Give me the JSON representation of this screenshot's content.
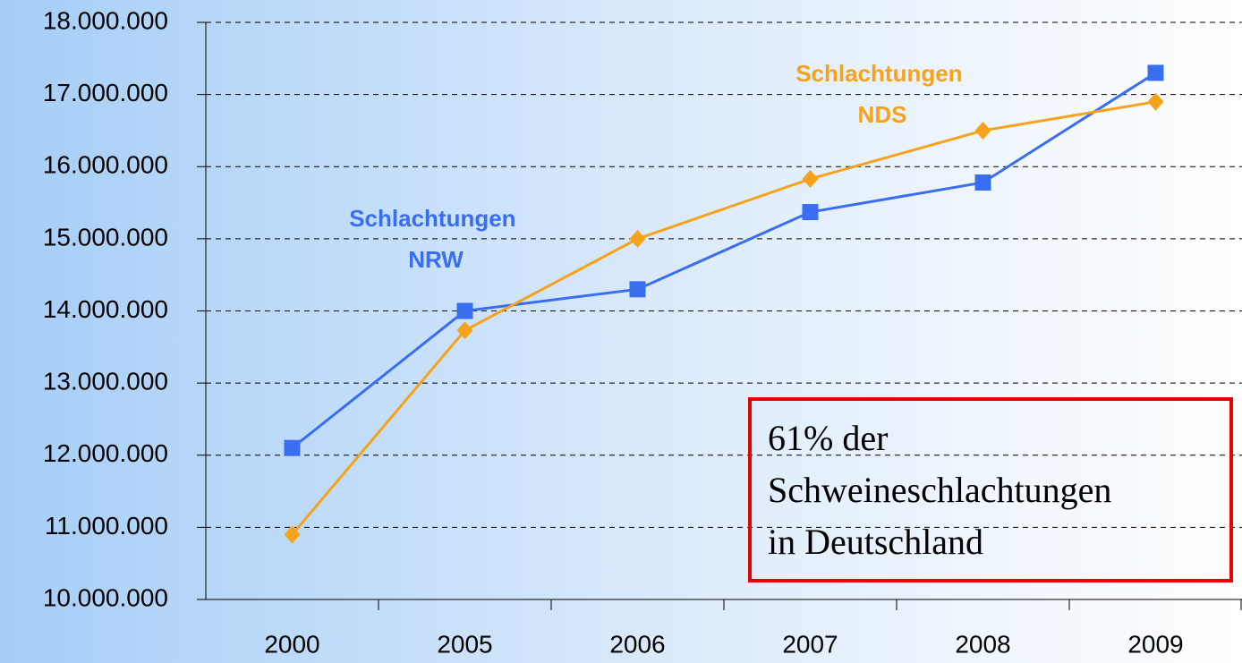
{
  "chart_data": {
    "type": "line",
    "categories": [
      "2000",
      "2005",
      "2006",
      "2007",
      "2008",
      "2009"
    ],
    "series": [
      {
        "name": "Schlachtungen NRW",
        "color": "#3a6ef0",
        "marker": "square",
        "values": [
          12100000,
          14000000,
          14300000,
          15370000,
          15780000,
          17300000
        ]
      },
      {
        "name": "Schlachtungen NDS",
        "color": "#f7a21b",
        "marker": "diamond",
        "values": [
          10900000,
          13730000,
          15000000,
          15830000,
          16500000,
          16900000
        ]
      }
    ],
    "ylim": [
      10000000,
      18000000
    ],
    "yticks": [
      {
        "value": 10000000,
        "label": "10.000.000"
      },
      {
        "value": 11000000,
        "label": "11.000.000"
      },
      {
        "value": 12000000,
        "label": "12.000.000"
      },
      {
        "value": 13000000,
        "label": "13.000.000"
      },
      {
        "value": 14000000,
        "label": "14.000.000"
      },
      {
        "value": 15000000,
        "label": "15.000.000"
      },
      {
        "value": 16000000,
        "label": "16.000.000"
      },
      {
        "value": 17000000,
        "label": "17.000.000"
      },
      {
        "value": 18000000,
        "label": "18.000.000"
      }
    ],
    "grid": true,
    "annotation_box": {
      "lines": [
        "61% der",
        "Schweineschlachtungen",
        "in Deutschland"
      ],
      "border_color": "#e60000"
    }
  }
}
